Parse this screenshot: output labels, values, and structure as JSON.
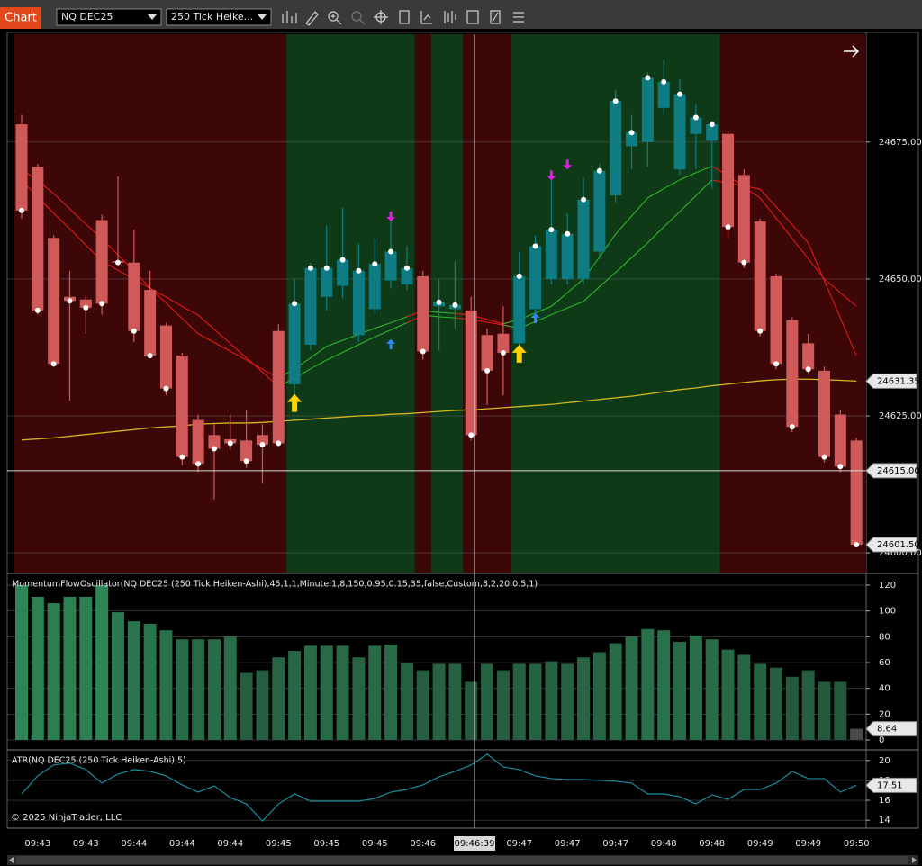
{
  "toolbar": {
    "tab": "Chart",
    "instrument": "NQ DEC25",
    "bar_type": "250 Tick Heike..."
  },
  "x_axis": {
    "categories": [
      null,
      "09:43",
      null,
      null,
      "09:43",
      null,
      null,
      "09:44",
      null,
      null,
      "09:44",
      null,
      null,
      "09:44",
      null,
      null,
      "09:45",
      null,
      null,
      "09:45",
      null,
      null,
      "09:45",
      null,
      null,
      "09:46",
      null,
      null,
      null,
      null,
      null,
      "09:47",
      null,
      null,
      "09:47",
      null,
      null,
      "09:47",
      null,
      null,
      "09:48",
      null,
      null,
      "09:48",
      null,
      null,
      "09:49",
      null,
      null,
      "09:49",
      null,
      null,
      "09:50"
    ]
  },
  "crosshair": {
    "time": "09:46:39",
    "price": {
      "value": 24615,
      "label": "24615.00"
    }
  },
  "copyright": "© 2025 NinjaTrader, LLC",
  "chart_data": [
    {
      "type": "candlestick",
      "open": [
        24678.25,
        24670.5,
        24657.5,
        24646.75,
        24646.25,
        24660.75,
        24653.25,
        24653,
        24648,
        24641.5,
        24636,
        24624.25,
        24621.5,
        24620.75,
        24620.5,
        24621.5,
        24640.5,
        24630.75,
        24638,
        24646.75,
        24648.75,
        24639.75,
        24644.5,
        24649.75,
        24649,
        24650.5,
        24645,
        24644.5,
        24644.25,
        24639.75,
        24640,
        24638.25,
        24644.5,
        24650,
        24650,
        24650,
        24655,
        24665.25,
        24674.25,
        24675,
        24681.25,
        24670,
        24676.5,
        24675.25,
        24676.5,
        24669,
        24660.5,
        24650.5,
        24642.5,
        24638.25,
        24633.25,
        24625.25,
        24620.5
      ],
      "high": [
        24680,
        24671,
        24658,
        24651.5,
        24647,
        24661.75,
        24668.75,
        24659,
        24651.5,
        24642,
        24636.5,
        24625.25,
        24623.5,
        24625.25,
        24626,
        24623.5,
        24641.75,
        24650,
        24653,
        24659.75,
        24663,
        24656.5,
        24657.25,
        24661.75,
        24656,
        24651.5,
        24650,
        24653.25,
        24646.75,
        24641,
        24645,
        24655,
        24658,
        24668,
        24662,
        24668.5,
        24671,
        24684.5,
        24680,
        24687.75,
        24690,
        24686.5,
        24682,
        24679,
        24677,
        24670,
        24661,
        24651,
        24643,
        24640,
        24634,
        24626,
        24621
      ],
      "low": [
        24661,
        24643.5,
        24634,
        24627.75,
        24640,
        24643.5,
        24652.5,
        24638.5,
        24635.5,
        24628.75,
        24616,
        24614.75,
        24609.75,
        24618.75,
        24615.5,
        24612.75,
        24619.5,
        24628.75,
        24637,
        24644.25,
        24646.5,
        24638.5,
        24643.5,
        24648.25,
        24648,
        24635.25,
        24637,
        24641,
        24620.5,
        24627,
        24628.75,
        24637,
        24643,
        24649,
        24649,
        24649,
        24654,
        24664,
        24670,
        24670.5,
        24680,
        24669,
        24670,
        24666.5,
        24657.5,
        24652,
        24639.5,
        24633.5,
        24622,
        24632.5,
        24616.5,
        24614.75,
        24601.5
      ],
      "close": [
        24662.5,
        24644.25,
        24634.5,
        24646,
        24644.75,
        24645.5,
        24653,
        24640.5,
        24636,
        24630,
        24617.5,
        24616.25,
        24619,
        24620,
        24616.75,
        24619.75,
        24620,
        24645.5,
        24652,
        24652,
        24653.5,
        24651.5,
        24652.75,
        24655,
        24652,
        24636.75,
        24645.75,
        24645.25,
        24621.5,
        24633.25,
        24636.5,
        24650.5,
        24656,
        24659,
        24658.25,
        24664.5,
        24669.75,
        24682.5,
        24676.75,
        24686.75,
        24686,
        24683.75,
        24679.5,
        24678.25,
        24659.5,
        24653,
        24640.5,
        24634.5,
        24623,
        24633.5,
        24617.5,
        24615.75,
        24601.5
      ],
      "up_color": "#0f7c83",
      "down_color": "#d05a5a",
      "close_dots": true,
      "ylim": [
        24596.4,
        24694.7
      ],
      "yticks": [
        {
          "value": 24600,
          "label": "24600.00"
        },
        {
          "value": 24625,
          "label": "24625.00"
        },
        {
          "value": 24650,
          "label": "24650.00"
        },
        {
          "value": 24675,
          "label": "24675.00"
        }
      ],
      "grid": true,
      "regimes": [
        {
          "from": 0,
          "to": 16,
          "state": "bear"
        },
        {
          "from": 17,
          "to": 24,
          "state": "bull"
        },
        {
          "from": 25,
          "to": 25,
          "state": "bear"
        },
        {
          "from": 26,
          "to": 27,
          "state": "bull"
        },
        {
          "from": 28,
          "to": 30,
          "state": "bear"
        },
        {
          "from": 31,
          "to": 43,
          "state": "bull"
        },
        {
          "from": 44,
          "to": 52,
          "state": "bear"
        }
      ],
      "regime_colors": {
        "bull": "#0f3a17",
        "bear": "#3e0707"
      },
      "ribbon": {
        "colors": {
          "bull": "#2fb52f",
          "bear": "#e01a1a"
        },
        "lines": [
          {
            "values": [
              24670,
              24668,
              24665.6,
              24662.8,
              24660,
              24657.4,
              24654.4,
              24651.4,
              24648.4,
              24645.6,
              24642.8,
              24640,
              24638.4,
              24636.8,
              24635.2,
              24633.5,
              24631.9,
              24633.6,
              24635.6,
              24637.7,
              24638.8,
              24639.9,
              24641,
              24642,
              24643.1,
              24644.2,
              24643.9,
              24643.7,
              24643.4,
              24642.6,
              24641.8,
              24642.6,
              24643.8,
              24645,
              24647.5,
              24650,
              24654,
              24658.2,
              24661.5,
              24664.8,
              24666.5,
              24668.1,
              24669.4,
              24670.6,
              24668.9,
              24666.8,
              24664.8,
              24661.1,
              24657.4,
              24653.7,
              24650,
              24647.5,
              24645
            ]
          },
          {
            "values": [
              24668,
              24665,
              24662,
              24659.2,
              24656.2,
              24653.3,
              24651.6,
              24650,
              24648.3,
              24646.7,
              24645,
              24643.4,
              24640.8,
              24638.2,
              24635.6,
              24633,
              24630.3,
              24631.9,
              24633.6,
              24635.2,
              24636.6,
              24638,
              24639.4,
              24640.7,
              24642,
              24643.4,
              24643.1,
              24642.9,
              24642.6,
              24642.1,
              24641.6,
              24641,
              24642.2,
              24643.5,
              24644.7,
              24645.9,
              24648.6,
              24651.2,
              24653.9,
              24656.6,
              24659.5,
              24662.3,
              24665.2,
              24668.1,
              24667.5,
              24667,
              24666.4,
              24663.2,
              24659.9,
              24656.6,
              24649.7,
              24642.9,
              24636
            ]
          }
        ]
      },
      "overlays": [
        {
          "color": "#d4b81e",
          "values": [
            24620.6,
            24620.8,
            24621,
            24621.3,
            24621.6,
            24621.9,
            24622.2,
            24622.5,
            24622.8,
            24623,
            24623.2,
            24623.5,
            24623.6,
            24623.7,
            24623.7,
            24623.8,
            24624,
            24624.2,
            24624.4,
            24624.6,
            24624.8,
            24625,
            24625.1,
            24625.3,
            24625.4,
            24625.6,
            24625.8,
            24626,
            24626.1,
            24626.3,
            24626.5,
            24626.7,
            24626.9,
            24627.1,
            24627.4,
            24627.7,
            24628,
            24628.3,
            24628.6,
            24629,
            24629.4,
            24629.8,
            24630.1,
            24630.5,
            24630.8,
            24631.1,
            24631.4,
            24631.6,
            24631.7,
            24631.7,
            24631.6,
            24631.5,
            24631.35
          ]
        }
      ],
      "signals": [
        {
          "bar": 17,
          "value": 24629,
          "dir": "up",
          "color": "#ffd200",
          "size": "large"
        },
        {
          "bar": 31,
          "value": 24638,
          "dir": "up",
          "color": "#ffd200",
          "size": "large"
        },
        {
          "bar": 23,
          "value": 24639,
          "dir": "up",
          "color": "#2a8cff",
          "size": "small"
        },
        {
          "bar": 32,
          "value": 24643.75,
          "dir": "up",
          "color": "#2a8cff",
          "size": "small"
        },
        {
          "bar": 23,
          "value": 24660.5,
          "dir": "down",
          "color": "#e020e0",
          "size": "small"
        },
        {
          "bar": 33,
          "value": 24668,
          "dir": "down",
          "color": "#e020e0",
          "size": "small"
        },
        {
          "bar": 34,
          "value": 24670,
          "dir": "down",
          "color": "#e020e0",
          "size": "small"
        }
      ],
      "flags": [
        {
          "value": 24631.35,
          "label": "24631.35"
        },
        {
          "value": 24601.5,
          "label": "24601.50"
        }
      ]
    },
    {
      "type": "bar",
      "title": "MomentumFlowOscillator(NQ DEC25 (250 Tick Heiken-Ashi),45,1,1,Minute,1,8,150,0.95,0.15,35,false,Custom,3,2,20,0.5,1)",
      "values": [
        120,
        111,
        106,
        111,
        111,
        120,
        99,
        92,
        90,
        85,
        78,
        78,
        78,
        80,
        52,
        54,
        64,
        69,
        73,
        73,
        73,
        64,
        73,
        74,
        60,
        54,
        59,
        59,
        45,
        59,
        54,
        59,
        59,
        61,
        59,
        64,
        68,
        75,
        80,
        86,
        85,
        76,
        81,
        78,
        70,
        66,
        59,
        56,
        49,
        54,
        45,
        45,
        8.64
      ],
      "color_high": "#2f8a5a",
      "color_low": "#1d3a2a",
      "last_color": "#4a4a4a",
      "ylim": [
        -5.6,
        127
      ],
      "yticks": [
        0,
        20,
        40,
        60,
        80,
        100,
        120
      ],
      "grid": true,
      "flags": [
        {
          "value": 8.64,
          "label": "8.64"
        }
      ]
    },
    {
      "type": "line",
      "title": "ATR(NQ DEC25 (250 Tick Heiken-Ashi),5)",
      "values": [
        16.64,
        18.45,
        19.55,
        19.73,
        19.09,
        17.73,
        18.64,
        19.09,
        18.91,
        18.45,
        17.55,
        16.82,
        17.45,
        16.27,
        15.64,
        13.91,
        15.64,
        16.64,
        15.91,
        15.91,
        15.91,
        15.91,
        16.18,
        16.82,
        17.09,
        17.55,
        18.36,
        18.91,
        19.55,
        20.64,
        19.36,
        19.09,
        18.45,
        18.18,
        18.09,
        18.09,
        18,
        17.91,
        17.73,
        16.64,
        16.64,
        16.36,
        15.64,
        16.55,
        16.09,
        17.09,
        17.09,
        17.73,
        18.91,
        18.18,
        18.18,
        16.82,
        17.51
      ],
      "color": "#1a8d9c",
      "ylim": [
        13.2,
        20.8
      ],
      "yticks": [
        14,
        16,
        18,
        20
      ],
      "grid": true,
      "flags": [
        {
          "value": 17.51,
          "label": "17.51"
        }
      ]
    }
  ]
}
